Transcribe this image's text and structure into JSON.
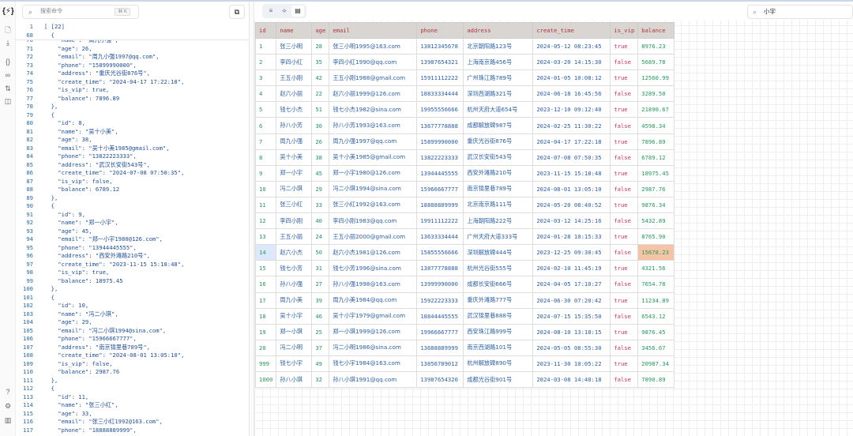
{
  "rail": {
    "icons": [
      "logo-braces-icon",
      "new-file-icon",
      "download-icon",
      "braces-icon",
      "link-icon",
      "sort-icon",
      "compare-icon",
      "help-icon",
      "settings-icon",
      "chart-icon"
    ],
    "logo": "{⚡}"
  },
  "command": {
    "placeholder": "搜索命令",
    "shortcut": "⌘ K"
  },
  "editor": {
    "sticky": [
      {
        "n": "1",
        "text": "[ [22]"
      },
      {
        "n": "68",
        "text": "  {"
      }
    ],
    "lines": [
      {
        "n": "70",
        "text": "    \"name\": \"周九小强\","
      },
      {
        "n": "71",
        "text": "    \"age\": 26,"
      },
      {
        "n": "72",
        "text": "    \"email\": \"周九小强1997@qq.com\","
      },
      {
        "n": "73",
        "text": "    \"phone\": \"15899990000\","
      },
      {
        "n": "74",
        "text": "    \"address\": \"重庆光谷街876号\","
      },
      {
        "n": "75",
        "text": "    \"create_time\": \"2024-04-17 17:22:18\","
      },
      {
        "n": "76",
        "text": "    \"is_vip\": true,"
      },
      {
        "n": "77",
        "text": "    \"balance\": 7896.89"
      },
      {
        "n": "78",
        "text": "  },"
      },
      {
        "n": "79",
        "text": "  {"
      },
      {
        "n": "80",
        "text": "    \"id\": 8,"
      },
      {
        "n": "81",
        "text": "    \"name\": \"吴十小美\","
      },
      {
        "n": "82",
        "text": "    \"age\": 38,"
      },
      {
        "n": "83",
        "text": "    \"email\": \"吴十小美1985@gmail.com\","
      },
      {
        "n": "84",
        "text": "    \"phone\": \"13822223333\","
      },
      {
        "n": "85",
        "text": "    \"address\": \"武汉长安街543号\","
      },
      {
        "n": "86",
        "text": "    \"create_time\": \"2024-07-08 07:50:35\","
      },
      {
        "n": "87",
        "text": "    \"is_vip\": false,"
      },
      {
        "n": "88",
        "text": "    \"balance\": 6789.12"
      },
      {
        "n": "89",
        "text": "  },"
      },
      {
        "n": "90",
        "text": "  {"
      },
      {
        "n": "91",
        "text": "    \"id\": 9,"
      },
      {
        "n": "92",
        "text": "    \"name\": \"郑一小宇\","
      },
      {
        "n": "93",
        "text": "    \"age\": 45,"
      },
      {
        "n": "94",
        "text": "    \"email\": \"郑一小宇1980@126.com\","
      },
      {
        "n": "95",
        "text": "    \"phone\": \"13944445555\","
      },
      {
        "n": "96",
        "text": "    \"address\": \"西安外滩路210号\","
      },
      {
        "n": "97",
        "text": "    \"create_time\": \"2023-11-15 15:18:48\","
      },
      {
        "n": "98",
        "text": "    \"is_vip\": true,"
      },
      {
        "n": "99",
        "text": "    \"balance\": 18975.45"
      },
      {
        "n": "100",
        "text": "  },"
      },
      {
        "n": "101",
        "text": "  {"
      },
      {
        "n": "102",
        "text": "    \"id\": 10,"
      },
      {
        "n": "103",
        "text": "    \"name\": \"冯二小琪\","
      },
      {
        "n": "104",
        "text": "    \"age\": 29,"
      },
      {
        "n": "105",
        "text": "    \"email\": \"冯二小琪1994@sina.com\","
      },
      {
        "n": "106",
        "text": "    \"phone\": \"15966667777\","
      },
      {
        "n": "107",
        "text": "    \"address\": \"南京锦里巷789号\","
      },
      {
        "n": "108",
        "text": "    \"create_time\": \"2024-08-01 13:05:10\","
      },
      {
        "n": "109",
        "text": "    \"is_vip\": false,"
      },
      {
        "n": "110",
        "text": "    \"balance\": 2987.76"
      },
      {
        "n": "111",
        "text": "  },"
      },
      {
        "n": "112",
        "text": "  {"
      },
      {
        "n": "113",
        "text": "    \"id\": 11,"
      },
      {
        "n": "114",
        "text": "    \"name\": \"张三小红\","
      },
      {
        "n": "115",
        "text": "    \"age\": 33,"
      },
      {
        "n": "116",
        "text": "    \"email\": \"张三小红1992@163.com\","
      },
      {
        "n": "117",
        "text": "    \"phone\": \"18888889999\","
      }
    ]
  },
  "view_modes": [
    {
      "icon": "text-view-icon",
      "active": false
    },
    {
      "icon": "tree-view-icon",
      "active": false
    },
    {
      "icon": "table-view-icon",
      "active": true
    }
  ],
  "search": {
    "value": "小宇"
  },
  "table": {
    "columns": [
      "id",
      "name",
      "age",
      "email",
      "phone",
      "address",
      "create_time",
      "is_vip",
      "balance"
    ],
    "rows": [
      [
        "1",
        "张三小明",
        "28",
        "张三小明1995@163.com",
        "13812345678",
        "北京朝阳路123号",
        "2024-05-12 08:23:45",
        "true",
        "8976.23"
      ],
      [
        "2",
        "李四小红",
        "35",
        "李四小红1990@qq.com",
        "13987654321",
        "上海南京路456号",
        "2024-03-20 14:15:30",
        "false",
        "5689.78"
      ],
      [
        "3",
        "王五小刚",
        "42",
        "王五小刚1988@gmail.com",
        "15911112222",
        "广州珠江路789号",
        "2024-01-05 10:08:12",
        "true",
        "12560.99"
      ],
      [
        "4",
        "赵六小丽",
        "22",
        "赵六小丽1999@126.com",
        "18833334444",
        "深圳西湖路321号",
        "2024-06-18 16:45:56",
        "false",
        "3289.50"
      ],
      [
        "5",
        "钱七小杰",
        "51",
        "钱七小杰1982@sina.com",
        "19955556666",
        "杭州天府大道654号",
        "2023-12-10 09:12:40",
        "true",
        "21890.67"
      ],
      [
        "6",
        "孙八小芳",
        "30",
        "孙八小芳1993@163.com",
        "13677778888",
        "成都解放碑987号",
        "2024-02-25 11:30:22",
        "false",
        "4598.34"
      ],
      [
        "7",
        "周九小强",
        "26",
        "周九小强1997@qq.com",
        "15899990000",
        "重庆光谷街876号",
        "2024-04-17 17:22:18",
        "true",
        "7896.89"
      ],
      [
        "8",
        "吴十小美",
        "38",
        "吴十小美1985@gmail.com",
        "13822223333",
        "武汉长安街543号",
        "2024-07-08 07:50:35",
        "false",
        "6789.12"
      ],
      [
        "9",
        "郑一小宇",
        "45",
        "郑一小宇1980@126.com",
        "13944445555",
        "西安外滩路210号",
        "2023-11-15 15:18:48",
        "true",
        "18975.45"
      ],
      [
        "10",
        "冯二小琪",
        "29",
        "冯二小琪1994@sina.com",
        "15966667777",
        "南京锦里巷789号",
        "2024-08-01 13:05:10",
        "false",
        "2987.76"
      ],
      [
        "11",
        "张三小红",
        "33",
        "张三小红1992@163.com",
        "18888889999",
        "北京南京路111号",
        "2024-05-20 08:40:52",
        "true",
        "9876.34"
      ],
      [
        "12",
        "李四小刚",
        "40",
        "李四小刚1983@qq.com",
        "19911112222",
        "上海朝阳路222号",
        "2024-03-12 14:25:16",
        "false",
        "5432.89"
      ],
      [
        "13",
        "王五小丽",
        "24",
        "王五小丽2000@gmail.com",
        "13633334444",
        "广州天府大道333号",
        "2024-01-28 10:15:33",
        "true",
        "8765.90"
      ],
      [
        "14",
        "赵六小杰",
        "50",
        "赵六小杰1981@126.com",
        "15855556666",
        "深圳解放碑444号",
        "2023-12-25 09:30:45",
        "false",
        "15678.23"
      ],
      [
        "15",
        "钱七小芳",
        "31",
        "钱七小芳1996@sina.com",
        "13877778888",
        "杭州光谷街555号",
        "2024-02-10 11:45:19",
        "true",
        "4321.56"
      ],
      [
        "16",
        "孙八小强",
        "27",
        "孙八小强1998@163.com",
        "13999990000",
        "成都长安街666号",
        "2024-04-05 17:10:27",
        "false",
        "7654.78"
      ],
      [
        "17",
        "周九小美",
        "39",
        "周九小美1984@qq.com",
        "15922223333",
        "重庆外滩路777号",
        "2024-06-30 07:20:42",
        "true",
        "11234.89"
      ],
      [
        "18",
        "吴十小宇",
        "46",
        "吴十小宇1979@gmail.com",
        "18844445555",
        "武汉锦里巷888号",
        "2024-07-15 15:35:50",
        "false",
        "6543.12"
      ],
      [
        "19",
        "郑一小琪",
        "25",
        "郑一小琪1999@126.com",
        "19966667777",
        "西安珠江路999号",
        "2024-08-10 13:18:15",
        "true",
        "9876.45"
      ],
      [
        "20",
        "冯二小明",
        "37",
        "冯二小明1986@sina.com",
        "13688889999",
        "南京西湖路101号",
        "2024-05-05 08:55:30",
        "false",
        "3456.67"
      ],
      [
        "999",
        "钱七小宇",
        "49",
        "钱七小宇1984@163.com",
        "13856789012",
        "杭州解放碑890号",
        "2023-11-30 10:05:22",
        "true",
        "20987.34"
      ],
      [
        "1000",
        "孙八小琪",
        "32",
        "孙八小琪1991@qq.com",
        "13987654320",
        "成都光谷街901号",
        "2024-03-08 14:40:18",
        "false",
        "7890.89"
      ]
    ],
    "selected_row_id": "14",
    "colors": {
      "header_bg": "#d9d5d2",
      "header_text": "#b0343a",
      "number": "#229a5b",
      "string": "#2a5fa8",
      "bool": "#d0305a",
      "selected_cell": "#f5c4a6"
    }
  }
}
